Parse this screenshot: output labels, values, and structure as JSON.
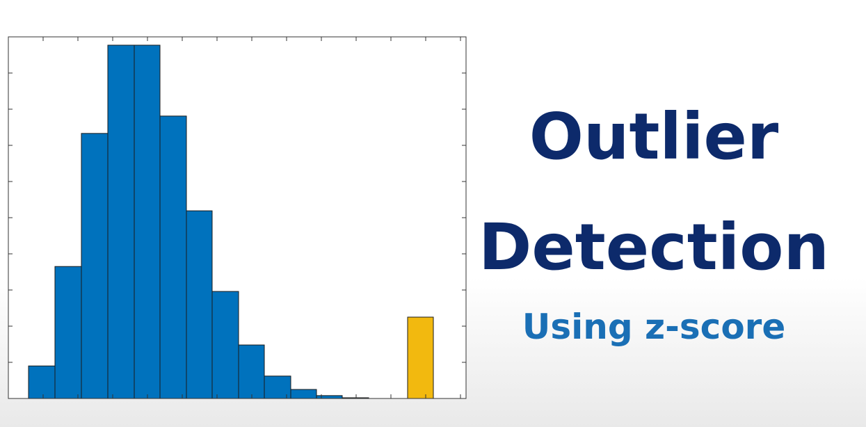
{
  "chart_data": {
    "type": "histogram",
    "title_lines": [
      "Outlier",
      "Detection"
    ],
    "subtitle": "Using z-score",
    "bins": [
      0.58,
      1.34,
      2.1,
      2.86,
      3.62,
      4.36,
      5.12,
      5.86,
      6.62,
      7.36,
      8.12,
      8.86,
      9.6,
      10.36
    ],
    "values": [
      0.9,
      3.65,
      7.33,
      9.77,
      9.77,
      7.81,
      5.19,
      2.96,
      1.48,
      0.62,
      0.25,
      0.08,
      0.02
    ],
    "color": "#0072bd",
    "highlight": {
      "bins": [
        11.48,
        12.22
      ],
      "values": [
        2.25
      ],
      "color": "#f2b90f"
    },
    "xlim": [
      0,
      13.16
    ],
    "xticks": [
      1,
      2,
      3,
      4,
      5,
      6,
      7,
      8,
      9,
      10,
      11,
      12,
      13
    ],
    "ylim": [
      0,
      10
    ],
    "yticks": [
      0,
      1,
      2,
      3,
      4,
      5,
      6,
      7,
      8,
      9,
      10
    ]
  }
}
